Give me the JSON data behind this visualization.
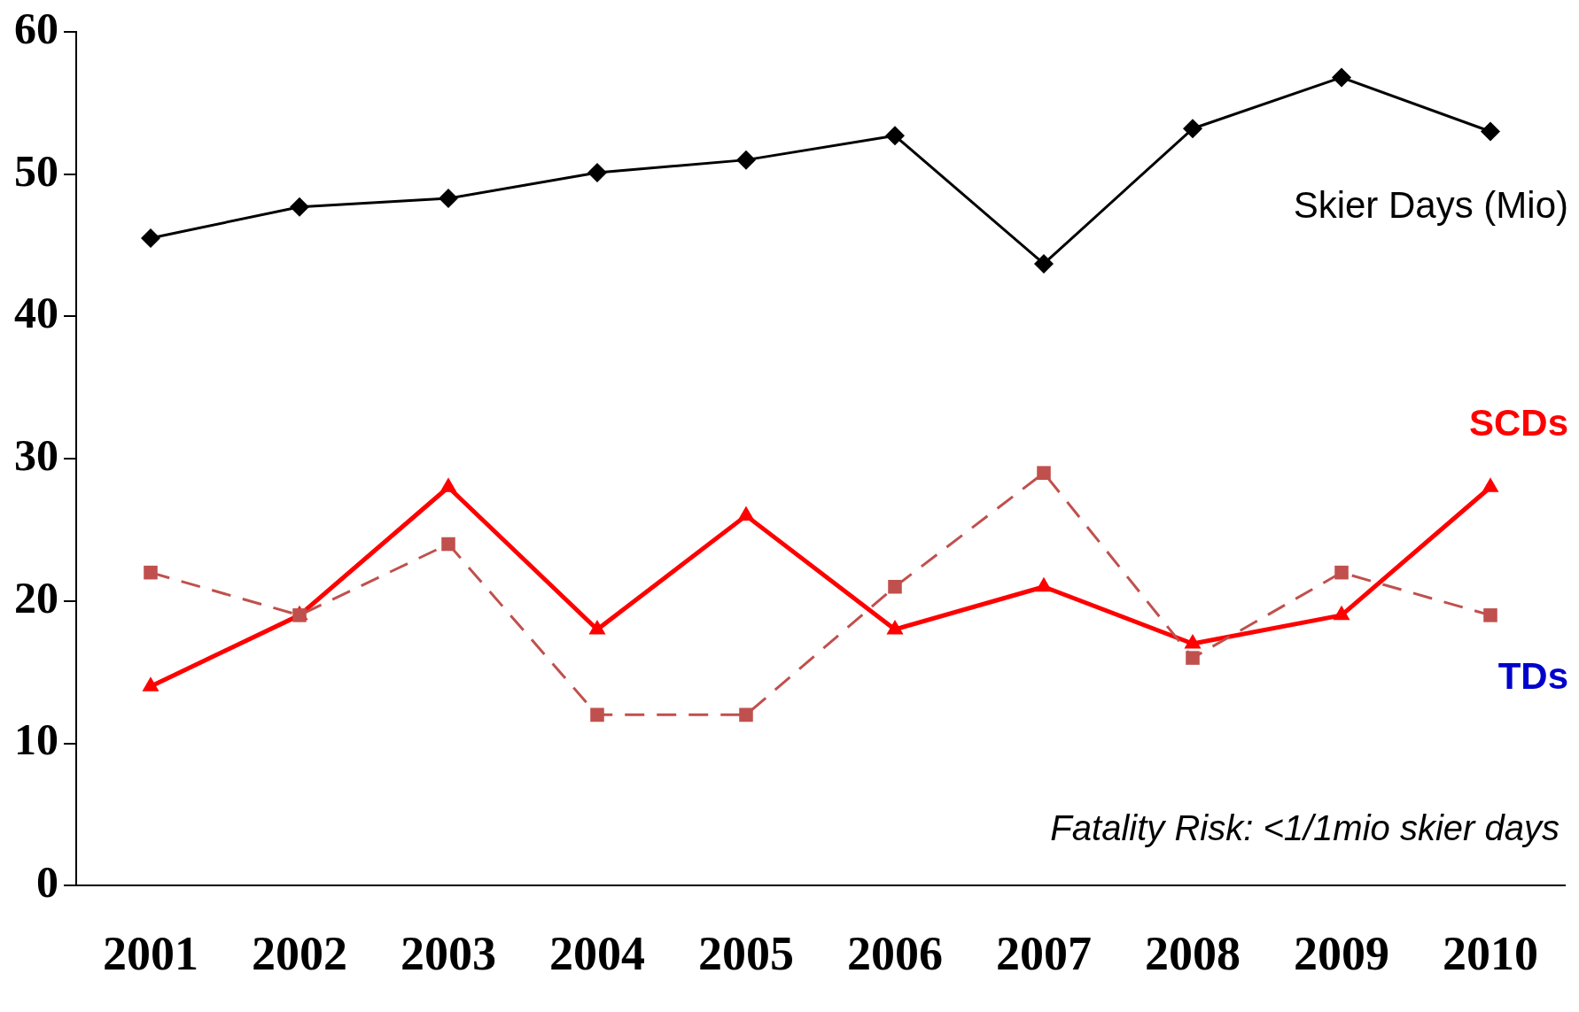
{
  "chart_data": {
    "type": "line",
    "categories": [
      "2001",
      "2002",
      "2003",
      "2004",
      "2005",
      "2006",
      "2007",
      "2008",
      "2009",
      "2010"
    ],
    "series": [
      {
        "name": "Skier Days (Mio)",
        "color": "#000000",
        "marker": "diamond",
        "line_style": "solid",
        "values": [
          45.5,
          47.7,
          48.3,
          50.1,
          51.0,
          52.7,
          43.7,
          53.2,
          56.8,
          53.0
        ]
      },
      {
        "name": "SCDs",
        "color": "#ff0000",
        "marker": "triangle",
        "line_style": "solid",
        "values": [
          14,
          19,
          28,
          18,
          26,
          18,
          21,
          17,
          19,
          28
        ]
      },
      {
        "name": "TDs",
        "color": "#c0504d",
        "marker": "square",
        "line_style": "dashed",
        "values": [
          22,
          19,
          24,
          12,
          12,
          21,
          29,
          16,
          22,
          19
        ]
      }
    ],
    "ylim": [
      0,
      60
    ],
    "yticks": [
      0,
      10,
      20,
      30,
      40,
      50,
      60
    ],
    "grid": false,
    "legend": false,
    "annotations": [
      "Fatality Risk: <1/1mio skier days"
    ]
  }
}
